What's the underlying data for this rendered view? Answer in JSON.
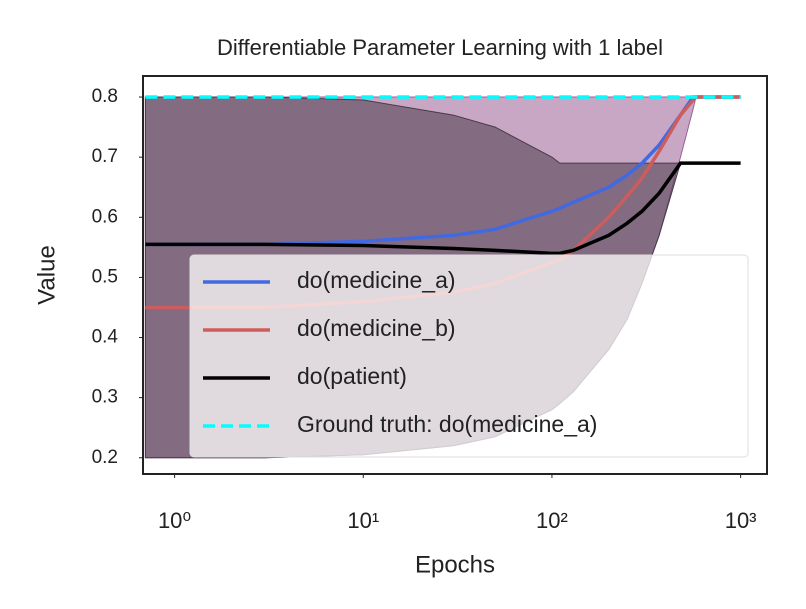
{
  "chart_data": {
    "type": "line",
    "title": "Differentiable Parameter Learning with 1 label",
    "x_label": "Epochs",
    "y_label": "Value",
    "x_scale": "log",
    "x": [
      0.7,
      3,
      10,
      30,
      50,
      100,
      110,
      130,
      200,
      250,
      300,
      370,
      480,
      560,
      580,
      1000
    ],
    "series": [
      {
        "name": "do(medicine_a)",
        "color": "#4169e1",
        "values": [
          0.555,
          0.555,
          0.56,
          0.57,
          0.58,
          0.61,
          0.615,
          0.625,
          0.65,
          0.67,
          0.69,
          0.72,
          0.77,
          0.8,
          0.8,
          0.8
        ]
      },
      {
        "name": "do(medicine_b)",
        "color": "#cd5c5c",
        "values": [
          0.45,
          0.45,
          0.46,
          0.475,
          0.49,
          0.525,
          0.53,
          0.545,
          0.6,
          0.635,
          0.665,
          0.71,
          0.77,
          0.795,
          0.8,
          0.8
        ]
      },
      {
        "name": "do(patient)",
        "color": "#000000",
        "values": [
          0.555,
          0.555,
          0.553,
          0.548,
          0.545,
          0.54,
          0.54,
          0.545,
          0.57,
          0.59,
          0.61,
          0.64,
          0.69,
          0.69,
          0.69,
          0.69
        ]
      },
      {
        "name": "Ground truth: do(medicine_a)",
        "color": "#00ffff",
        "dashed": true,
        "values": [
          0.8,
          0.8,
          0.8,
          0.8,
          0.8,
          0.8,
          0.8,
          0.8,
          0.8,
          0.8,
          0.8,
          0.8,
          0.8,
          0.8,
          0.8,
          0.8
        ]
      }
    ],
    "bands": [
      {
        "color": "#9b5f93",
        "opacity": 0.55,
        "lower": [
          0.2,
          0.2,
          0.205,
          0.22,
          0.235,
          0.28,
          0.29,
          0.31,
          0.38,
          0.43,
          0.49,
          0.57,
          0.7,
          0.78,
          0.8,
          0.8
        ],
        "upper": [
          0.8,
          0.8,
          0.8,
          0.8,
          0.8,
          0.8,
          0.8,
          0.8,
          0.8,
          0.8,
          0.8,
          0.8,
          0.8,
          0.8,
          0.8,
          0.8
        ]
      },
      {
        "color": "#4a3a4a",
        "opacity": 0.55,
        "lower": [
          0.2,
          0.2,
          0.205,
          0.22,
          0.235,
          0.28,
          0.29,
          0.31,
          0.38,
          0.43,
          0.49,
          0.57,
          0.69,
          null,
          null,
          null
        ],
        "upper": [
          0.8,
          0.8,
          0.795,
          0.77,
          0.75,
          0.7,
          0.69,
          0.69,
          0.69,
          0.69,
          0.69,
          0.69,
          0.69,
          null,
          null,
          null
        ]
      }
    ],
    "xlim": [
      0.68,
      1380
    ],
    "xticks": [
      {
        "value": 1,
        "label": "10⁰"
      },
      {
        "value": 10,
        "label": "10¹"
      },
      {
        "value": 100,
        "label": "10²"
      },
      {
        "value": 1000,
        "label": "10³"
      }
    ],
    "ylim": [
      0.173,
      0.835
    ],
    "yticks": [
      0.2,
      0.3,
      0.4,
      0.5,
      0.6,
      0.7,
      0.8
    ],
    "legend": "lower right"
  }
}
